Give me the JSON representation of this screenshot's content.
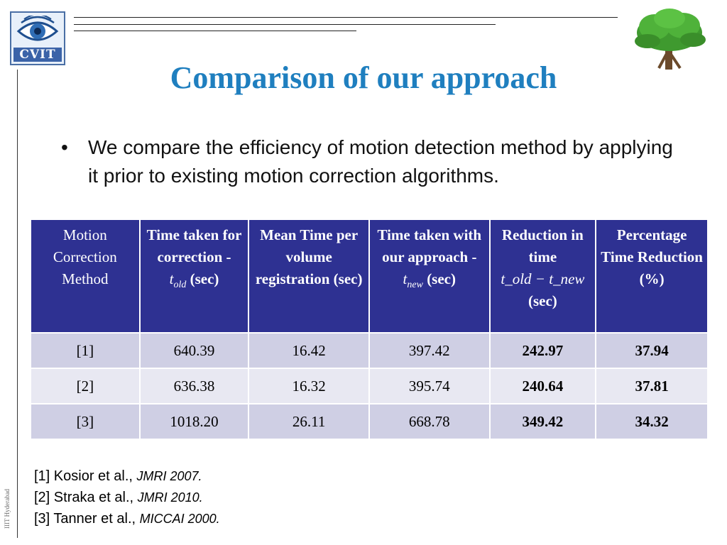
{
  "logo": {
    "text": "CVIT"
  },
  "footer_label": "IIIT Hyderabad",
  "title": "Comparison of our approach",
  "bullet": "We compare the efficiency of motion detection method by applying it prior to existing motion correction algorithms.",
  "table": {
    "headers": [
      {
        "text": "Motion Correction Method"
      },
      {
        "text": "Time taken for correction -",
        "math_base": "t",
        "math_sub": "old",
        "suffix": "(sec)"
      },
      {
        "text": "Mean Time per volume registration (sec)"
      },
      {
        "text": "Time taken with our approach -",
        "math_base": "t",
        "math_sub": "new",
        "suffix": "(sec)"
      },
      {
        "text": "Reduction in time",
        "math_expr": "t_old − t_new",
        "suffix": "(sec)"
      },
      {
        "text": "Percentage Time Reduction (%)"
      }
    ],
    "rows": [
      [
        "[1]",
        "640.39",
        "16.42",
        "397.42",
        "242.97",
        "37.94"
      ],
      [
        "[2]",
        "636.38",
        "16.32",
        "395.74",
        "240.64",
        "37.81"
      ],
      [
        "[3]",
        "1018.20",
        "26.11",
        "668.78",
        "349.42",
        "34.32"
      ]
    ]
  },
  "references": [
    {
      "label": "[1] Kosior et al., ",
      "venue": "JMRI 2007."
    },
    {
      "label": "[2] Straka et al., ",
      "venue": "JMRI 2010."
    },
    {
      "label": "[3] Tanner et al., ",
      "venue": "MICCAI 2000."
    }
  ],
  "colors": {
    "title": "#1f7fbf",
    "table_header_bg": "#2e3192",
    "row_dark": "#cfcfe4",
    "row_light": "#e8e8f2"
  },
  "icons": [
    "eye-icon",
    "tree-icon"
  ]
}
